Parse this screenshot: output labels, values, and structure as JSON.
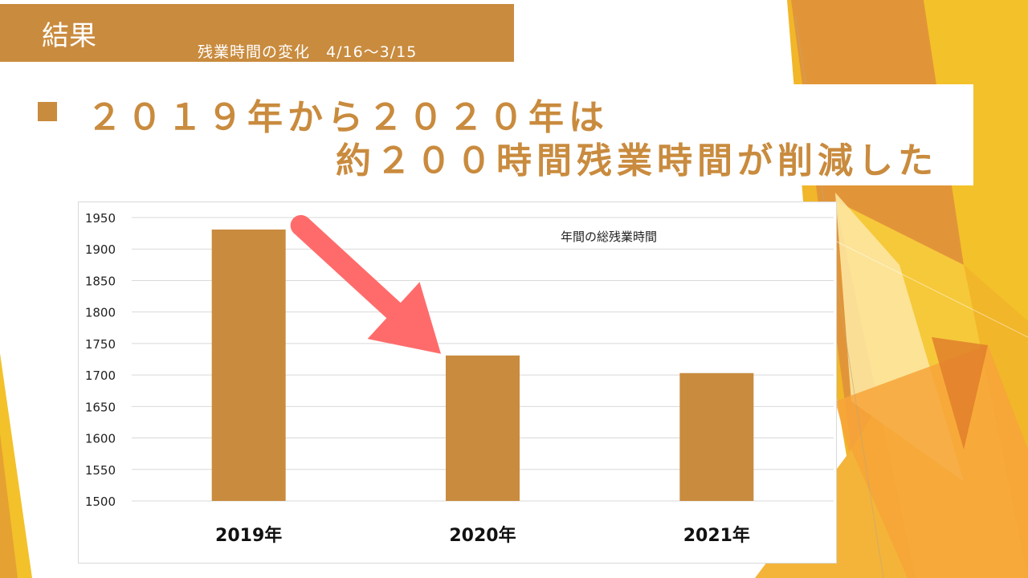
{
  "header": {
    "title": "結果",
    "subtitle": "残業時間の変化　4/16～3/15"
  },
  "headline": {
    "line1": "２０１９年から２０２０年は",
    "line2": "約２００時間残業時間が削減した"
  },
  "colors": {
    "accent": "#c98b3e",
    "arrow": "#ff6b6b",
    "grid": "#d9d9d9"
  },
  "chart_data": {
    "type": "bar",
    "title": "年間の総残業時間",
    "categories": [
      "2019年",
      "2020年",
      "2021年"
    ],
    "values": [
      1931,
      1731,
      1703
    ],
    "ylim": [
      1500,
      1950
    ],
    "yticks": [
      1500,
      1550,
      1600,
      1650,
      1700,
      1750,
      1800,
      1850,
      1900,
      1950
    ],
    "grid": true,
    "legend": "none",
    "annotation": "arrow from 2019年 bar to 2020年 bar"
  }
}
